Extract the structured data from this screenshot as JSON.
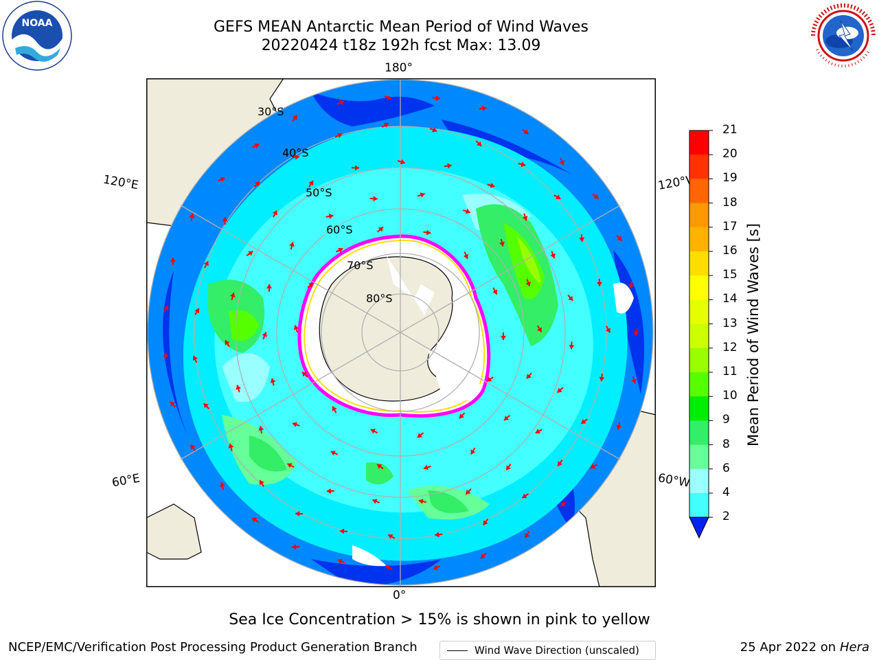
{
  "header": {
    "title_line1": "GEFS MEAN Antarctic Mean Period of Wind Waves",
    "title_line2": "20220424 t18z 192h fcst   Max: 13.09"
  },
  "logos": {
    "left": {
      "name": "noaa-logo",
      "text": "NOAA",
      "ring_text": "NATIONAL OCEANIC AND ATMOSPHERIC ADMINISTRATION · U.S. DEPARTMENT OF COMMERCE"
    },
    "right": {
      "name": "nws-logo",
      "ring_text": "NATIONAL WEATHER SERVICE"
    }
  },
  "map": {
    "projection": "south-polar-stereographic",
    "longitude_labels": {
      "top": "180°",
      "bottom": "0°",
      "left_upper": "120°E",
      "left_lower": "60°E",
      "right_upper": "120°W",
      "right_lower": "60°W"
    },
    "latitude_labels": [
      "30°S",
      "40°S",
      "50°S",
      "60°S",
      "70°S",
      "80°S"
    ],
    "legend": "Wind Wave Direction (unscaled)",
    "arrow_color": "#ff0000",
    "land_color": "#efecdc",
    "ice_colors": [
      "#ff00ff",
      "#ffff66"
    ]
  },
  "colorbar": {
    "label": "Mean Period of Wind Waves [s]",
    "ticks": [
      "21",
      "20",
      "19",
      "18",
      "17",
      "16",
      "15",
      "14",
      "13",
      "12",
      "11",
      "10",
      "9",
      "8",
      "6",
      "4",
      "2"
    ],
    "colors": [
      "#ff0000",
      "#ff3300",
      "#ff6600",
      "#ff9900",
      "#ffb300",
      "#ffdd00",
      "#ffff00",
      "#e6ff00",
      "#ccff00",
      "#99ff00",
      "#55ff00",
      "#00ee00",
      "#33ee66",
      "#66ff99",
      "#99ffff",
      "#44ffff",
      "#00eeff",
      "#0088ff",
      "#0044ff"
    ]
  },
  "notes": {
    "sea_ice": "Sea Ice Concentration > 15% is shown in pink to yellow",
    "footer_left": "NCEP/EMC/Verification Post Processing Product Generation Branch",
    "footer_right_date": "25 Apr 2022 on",
    "footer_right_host": "Hera"
  }
}
